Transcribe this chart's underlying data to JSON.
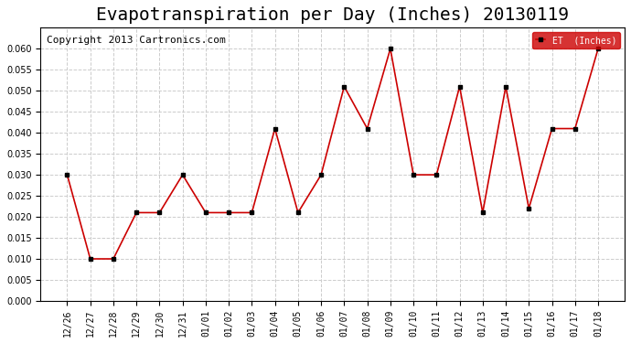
{
  "title": "Evapotranspiration per Day (Inches) 20130119",
  "copyright": "Copyright 2013 Cartronics.com",
  "legend_label": "ET  (Inches)",
  "x_labels": [
    "12/26",
    "12/27",
    "12/28",
    "12/29",
    "12/30",
    "12/31",
    "01/01",
    "01/02",
    "01/03",
    "01/04",
    "01/05",
    "01/06",
    "01/07",
    "01/08",
    "01/09",
    "01/10",
    "01/11",
    "01/12",
    "01/13",
    "01/14",
    "01/15",
    "01/16",
    "01/17",
    "01/18"
  ],
  "y_values": [
    0.03,
    0.01,
    0.01,
    0.021,
    0.021,
    0.03,
    0.021,
    0.021,
    0.021,
    0.041,
    0.021,
    0.03,
    0.051,
    0.041,
    0.06,
    0.03,
    0.03,
    0.051,
    0.021,
    0.051,
    0.022,
    0.041,
    0.041,
    0.06
  ],
  "line_color": "#cc0000",
  "marker_color": "#000000",
  "background_color": "#ffffff",
  "grid_color": "#cccccc",
  "ylim": [
    0,
    0.065
  ],
  "yticks": [
    0.0,
    0.005,
    0.01,
    0.015,
    0.02,
    0.025,
    0.03,
    0.035,
    0.04,
    0.045,
    0.05,
    0.055,
    0.06
  ],
  "title_fontsize": 14,
  "copyright_fontsize": 8,
  "legend_bg": "#cc0000",
  "legend_text_color": "#ffffff"
}
